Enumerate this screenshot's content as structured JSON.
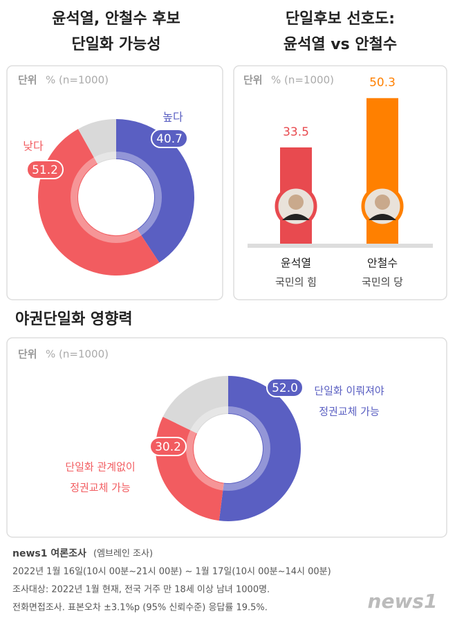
{
  "chart_data": [
    {
      "type": "donut",
      "title": [
        "윤석열, 안철수 후보",
        "단일화 가능성"
      ],
      "unit_label": "단위",
      "unit": "% (n=1000)",
      "categories": [
        "높다",
        "낮다",
        null
      ],
      "values": [
        40.7,
        51.2,
        8.1
      ],
      "colors": [
        "#5a5fc2",
        "#f25c60",
        "#d9d9d9"
      ]
    },
    {
      "type": "bar",
      "title": [
        "단일후보 선호도:",
        "윤석열 vs 안철수"
      ],
      "unit_label": "단위",
      "unit": "% (n=1000)",
      "categories": [
        "윤석열",
        "안철수"
      ],
      "subcategories": [
        "국민의 힘",
        "국민의 당"
      ],
      "values": [
        33.5,
        50.3
      ],
      "colors": [
        "#e84a4f",
        "#ff8000"
      ]
    },
    {
      "type": "donut",
      "title": [
        "야권단일화 영향력"
      ],
      "unit_label": "단위",
      "unit": "% (n=1000)",
      "categories": [
        [
          "단일화 이뤄져야",
          "정권교체 가능"
        ],
        [
          "단일화 관계없이",
          "정권교체 가능"
        ],
        null
      ],
      "values": [
        52,
        30.2,
        17.8
      ],
      "value_labels": [
        "52.0",
        "30.2",
        null
      ],
      "colors": [
        "#5a5fc2",
        "#f25c60",
        "#d9d9d9"
      ]
    }
  ],
  "footer": {
    "source": "news1 여론조사",
    "source_note": "(엠브레인 조사)",
    "lines": [
      "2022년 1월 16일(10시 00분~21시 00분) ~ 1월 17일(10시 00분~14시 00분)",
      "조사대상: 2022년 1월 현재, 전국 거주 만 18세 이상 남녀 1000명.",
      "전화면접조사. 표본오차 ±3.1%p (95% 신뢰수준) 응답률 19.5%."
    ],
    "logo": "news1"
  }
}
